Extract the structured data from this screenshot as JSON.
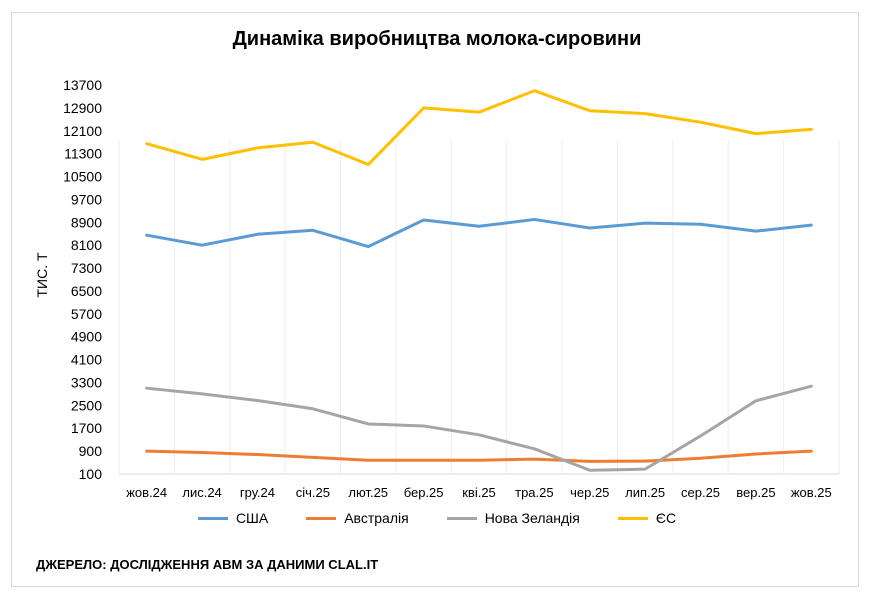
{
  "chart_data": {
    "type": "line",
    "title": "Динаміка виробництва молока-сировини",
    "ylabel": "ТИС. Т",
    "xlabel": "",
    "ylim": [
      100,
      13700
    ],
    "yticks": [
      100,
      900,
      1700,
      2500,
      3300,
      4100,
      4900,
      5700,
      6500,
      7300,
      8100,
      8900,
      9700,
      10500,
      11300,
      12100,
      12900,
      13700
    ],
    "categories": [
      "жов.24",
      "лис.24",
      "гру.24",
      "січ.25",
      "лют.25",
      "бер.25",
      "кві.25",
      "тра.25",
      "чер.25",
      "лип.25",
      "сер.25",
      "вер.25",
      "жов.25"
    ],
    "series": [
      {
        "name": "США",
        "color": "#5b9bd5",
        "values": [
          8450,
          8100,
          8480,
          8620,
          8050,
          8980,
          8760,
          9000,
          8700,
          8870,
          8830,
          8590,
          8800
        ]
      },
      {
        "name": "Австралія",
        "color": "#ed7d31",
        "values": [
          900,
          850,
          780,
          680,
          580,
          580,
          580,
          620,
          540,
          550,
          650,
          800,
          900
        ]
      },
      {
        "name": "Нова Зеландія",
        "color": "#a5a5a5",
        "values": [
          3100,
          2900,
          2670,
          2380,
          1850,
          1780,
          1470,
          980,
          230,
          270,
          1430,
          2660,
          3170
        ]
      },
      {
        "name": "ЄС",
        "color": "#ffc000",
        "values": [
          11650,
          11100,
          11500,
          11700,
          10920,
          12900,
          12750,
          13500,
          12800,
          12700,
          12400,
          12000,
          12150
        ]
      }
    ],
    "legend_position": "bottom",
    "grid": true
  },
  "footer": {
    "source": "ДЖЕРЕЛО: ДОСЛІДЖЕННЯ АВМ ЗА ДАНИМИ CLAL.IT"
  }
}
